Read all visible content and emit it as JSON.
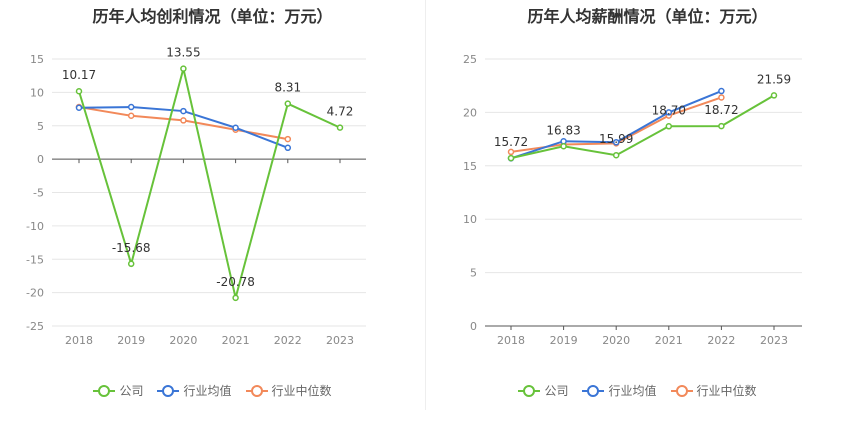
{
  "chart_data": [
    {
      "type": "line",
      "title": "历年人均创利情况（单位：万元）",
      "categories": [
        "2018",
        "2019",
        "2020",
        "2021",
        "2022",
        "2023"
      ],
      "ylim": [
        -25,
        15
      ],
      "yticks": [
        15,
        10,
        5,
        0,
        -5,
        -10,
        -15,
        -20,
        -25
      ],
      "grid": true,
      "legend": "bottom",
      "series": [
        {
          "name": "公司",
          "color": "#67c23a",
          "values": [
            10.17,
            -15.68,
            13.55,
            -20.78,
            8.31,
            4.72
          ],
          "labels": [
            "10.17",
            "-15.68",
            "13.55",
            "-20.78",
            "8.31",
            "4.72"
          ]
        },
        {
          "name": "行业均值",
          "color": "#3a75d6",
          "values": [
            7.7,
            7.8,
            7.2,
            4.7,
            1.7,
            null
          ]
        },
        {
          "name": "行业中位数",
          "color": "#f2895a",
          "values": [
            7.8,
            6.5,
            5.8,
            4.4,
            3.0,
            null
          ]
        }
      ]
    },
    {
      "type": "line",
      "title": "历年人均薪酬情况（单位：万元）",
      "categories": [
        "2018",
        "2019",
        "2020",
        "2021",
        "2022",
        "2023"
      ],
      "ylim": [
        0,
        25
      ],
      "yticks": [
        25,
        20,
        15,
        10,
        5,
        0
      ],
      "grid": true,
      "legend": "bottom",
      "series": [
        {
          "name": "公司",
          "color": "#67c23a",
          "values": [
            15.72,
            16.83,
            15.99,
            18.7,
            18.72,
            21.59
          ],
          "labels": [
            "15.72",
            "16.83",
            "15.99",
            "18.70",
            "18.72",
            "21.59"
          ]
        },
        {
          "name": "行业均值",
          "color": "#3a75d6",
          "values": [
            15.7,
            17.3,
            17.2,
            20.0,
            22.0,
            null
          ]
        },
        {
          "name": "行业中位数",
          "color": "#f2895a",
          "values": [
            16.3,
            17.0,
            17.1,
            19.7,
            21.4,
            null
          ]
        }
      ]
    }
  ]
}
